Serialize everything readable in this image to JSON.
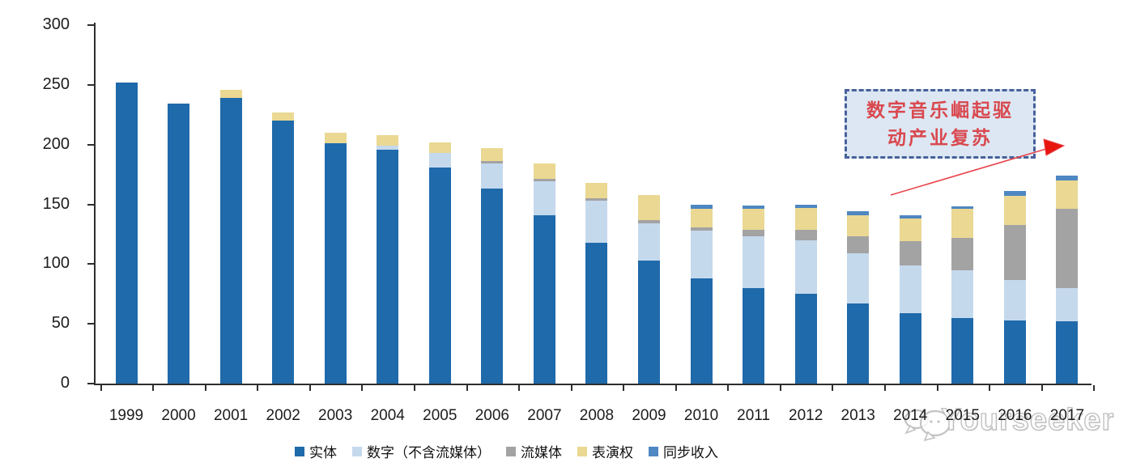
{
  "chart_data": {
    "type": "bar",
    "stacked": true,
    "categories": [
      "1999",
      "2000",
      "2001",
      "2002",
      "2003",
      "2004",
      "2005",
      "2006",
      "2007",
      "2008",
      "2009",
      "2010",
      "2011",
      "2012",
      "2013",
      "2014",
      "2015",
      "2016",
      "2017"
    ],
    "series": [
      {
        "name": "实体",
        "color": "#1f6aab",
        "values": [
          252,
          234,
          239,
          220,
          201,
          196,
          181,
          163,
          141,
          118,
          103,
          88,
          80,
          75,
          67,
          59,
          55,
          53,
          52
        ]
      },
      {
        "name": "数字（不含流媒体）",
        "color": "#c5d9ed",
        "values": [
          0,
          0,
          0,
          0,
          0,
          3,
          12,
          21,
          28,
          35,
          31,
          40,
          43,
          45,
          42,
          40,
          40,
          34,
          28
        ]
      },
      {
        "name": "流媒体",
        "color": "#a3a3a3",
        "values": [
          0,
          0,
          0,
          0,
          0,
          0,
          0,
          2,
          2,
          2,
          3,
          3,
          6,
          9,
          14,
          20,
          27,
          46,
          66
        ]
      },
      {
        "name": "表演权",
        "color": "#ead893",
        "values": [
          0,
          0,
          7,
          7,
          9,
          9,
          9,
          11,
          13,
          13,
          21,
          15,
          17,
          18,
          18,
          19,
          24,
          24,
          24
        ]
      },
      {
        "name": "同步收入",
        "color": "#4e87c2",
        "values": [
          0,
          0,
          0,
          0,
          0,
          0,
          0,
          0,
          0,
          0,
          0,
          4,
          3,
          3,
          3,
          3,
          2,
          4,
          4
        ]
      }
    ],
    "title": "",
    "xlabel": "",
    "ylabel": "",
    "ylim": [
      0,
      300
    ],
    "yticks": [
      0,
      50,
      100,
      150,
      200,
      250,
      300
    ],
    "grid": false,
    "legend_position": "bottom"
  },
  "annotation": {
    "line1": "数字音乐崛起驱",
    "line2": "动产业复苏",
    "text_color": "#d9484e",
    "box_fill": "#dce7f3",
    "border_color": "#46619c",
    "arrow_color": "#e8474d"
  },
  "watermark": {
    "text": "Yourseeker",
    "color": "#bdbdbd"
  }
}
